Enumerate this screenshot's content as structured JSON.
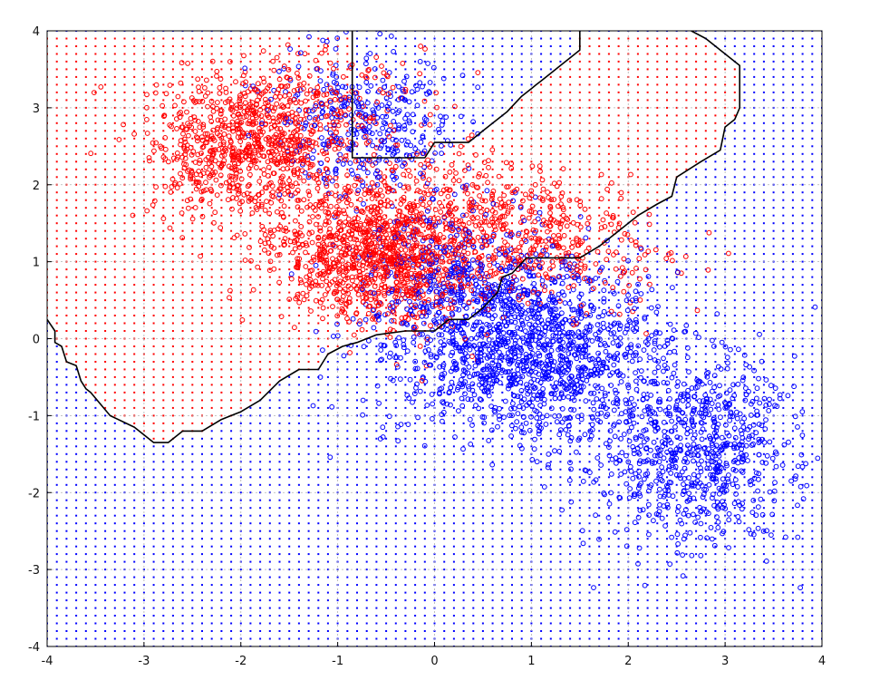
{
  "chart_data": {
    "type": "scatter",
    "title": "",
    "xlabel": "",
    "ylabel": "",
    "xlim": [
      -4,
      4
    ],
    "ylim": [
      -4,
      4
    ],
    "grid": true,
    "x_ticks": [
      "-4",
      "-3",
      "-2",
      "-1",
      "0",
      "1",
      "2",
      "3",
      "4"
    ],
    "y_ticks": [
      "-4",
      "-3",
      "-2",
      "-1",
      "0",
      "1",
      "2",
      "3",
      "4"
    ],
    "colors": {
      "class_a": "#ff0000",
      "class_b": "#0000ff",
      "boundary": "#000000",
      "grid": "#b0b0b0"
    },
    "series": [
      {
        "color": "#ff0000",
        "marker": "circle-open",
        "clusters": [
          {
            "center": [
              -1.9,
              2.5
            ],
            "spread": [
              0.5,
              0.45
            ],
            "count": 700,
            "rot": -0.3
          },
          {
            "center": [
              -0.6,
              1.1
            ],
            "spread": [
              0.55,
              0.45
            ],
            "count": 1100,
            "rot": -0.4
          },
          {
            "center": [
              0.9,
              1.4
            ],
            "spread": [
              0.8,
              0.4
            ],
            "count": 500,
            "rot": -0.45
          },
          {
            "center": [
              -1.3,
              3.0
            ],
            "spread": [
              0.6,
              0.35
            ],
            "count": 200,
            "rot": 0.0
          }
        ]
      },
      {
        "color": "#0000ff",
        "marker": "circle-open",
        "clusters": [
          {
            "center": [
              -0.7,
              2.8
            ],
            "spread": [
              0.45,
              0.5
            ],
            "count": 350,
            "rot": 0.0
          },
          {
            "center": [
              1.0,
              -0.2
            ],
            "spread": [
              0.75,
              0.55
            ],
            "count": 1300,
            "rot": -0.3
          },
          {
            "center": [
              2.7,
              -1.5
            ],
            "spread": [
              0.55,
              0.6
            ],
            "count": 700,
            "rot": -0.2
          },
          {
            "center": [
              0.3,
              0.8
            ],
            "spread": [
              0.6,
              0.45
            ],
            "count": 400,
            "rot": -0.4
          }
        ]
      }
    ],
    "decision_boundaries": [
      [
        [
          -4,
          0.25
        ],
        [
          -3.92,
          0.1
        ],
        [
          -3.92,
          -0.05
        ],
        [
          -3.85,
          -0.1
        ],
        [
          -3.8,
          -0.3
        ],
        [
          -3.7,
          -0.35
        ],
        [
          -3.65,
          -0.55
        ],
        [
          -3.6,
          -0.65
        ],
        [
          -3.55,
          -0.7
        ],
        [
          -3.35,
          -1.0
        ],
        [
          -3.1,
          -1.15
        ],
        [
          -2.9,
          -1.35
        ],
        [
          -2.75,
          -1.35
        ],
        [
          -2.6,
          -1.2
        ],
        [
          -2.4,
          -1.2
        ],
        [
          -2.2,
          -1.05
        ],
        [
          -2.0,
          -0.95
        ],
        [
          -1.8,
          -0.8
        ],
        [
          -1.6,
          -0.55
        ],
        [
          -1.4,
          -0.4
        ],
        [
          -1.2,
          -0.4
        ],
        [
          -1.1,
          -0.2
        ],
        [
          -0.95,
          -0.1
        ],
        [
          -0.8,
          -0.05
        ],
        [
          -0.6,
          0.05
        ],
        [
          -0.3,
          0.1
        ],
        [
          0.0,
          0.1
        ],
        [
          0.15,
          0.25
        ],
        [
          0.35,
          0.25
        ],
        [
          0.5,
          0.4
        ],
        [
          0.65,
          0.6
        ],
        [
          0.7,
          0.8
        ],
        [
          0.8,
          0.85
        ],
        [
          0.95,
          1.05
        ],
        [
          1.5,
          1.05
        ],
        [
          1.7,
          1.2
        ],
        [
          1.9,
          1.4
        ],
        [
          2.1,
          1.6
        ],
        [
          2.3,
          1.75
        ],
        [
          2.45,
          1.85
        ],
        [
          2.5,
          2.1
        ],
        [
          2.75,
          2.3
        ],
        [
          2.95,
          2.45
        ],
        [
          3.0,
          2.75
        ],
        [
          3.1,
          2.85
        ],
        [
          3.15,
          3.0
        ],
        [
          3.15,
          3.55
        ],
        [
          3.05,
          3.65
        ],
        [
          2.8,
          3.9
        ],
        [
          2.65,
          4.0
        ]
      ],
      [
        [
          -0.85,
          4.0
        ],
        [
          -0.85,
          2.35
        ],
        [
          -0.4,
          2.35
        ],
        [
          -0.1,
          2.35
        ],
        [
          0.0,
          2.55
        ],
        [
          0.35,
          2.55
        ],
        [
          0.5,
          2.7
        ],
        [
          0.75,
          2.95
        ],
        [
          0.9,
          3.15
        ],
        [
          1.0,
          3.25
        ],
        [
          1.05,
          3.3
        ],
        [
          1.1,
          3.35
        ],
        [
          1.2,
          3.45
        ],
        [
          1.3,
          3.55
        ],
        [
          1.4,
          3.65
        ],
        [
          1.5,
          3.75
        ],
        [
          1.5,
          4.0
        ]
      ]
    ]
  }
}
